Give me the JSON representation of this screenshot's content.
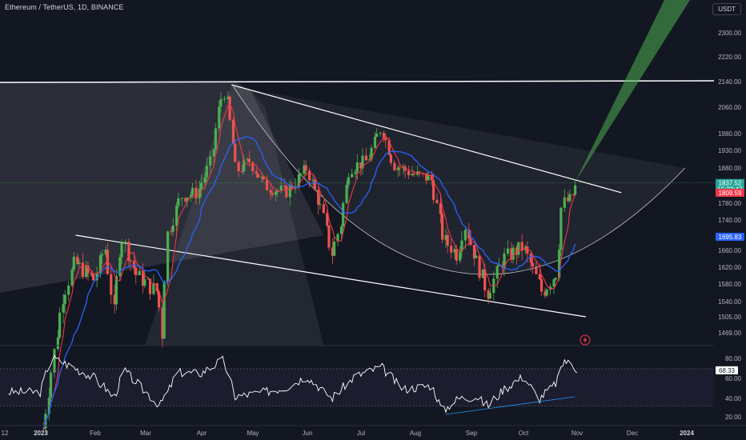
{
  "header": {
    "title": "Ethereum / TetherUS, 1D, BINANCE",
    "currency": "USDT"
  },
  "chart_data": [
    {
      "type": "candlestick",
      "symbol": "ETHUSDT",
      "timeframe": "1D",
      "exchange": "BINANCE",
      "price_axis_ticks": [
        "2300.00",
        "2220.00",
        "2140.00",
        "2060.00",
        "1980.00",
        "1930.00",
        "1880.00",
        "1780.00",
        "1740.00",
        "1660.00",
        "1620.00",
        "1580.00",
        "1540.00",
        "1505.00",
        "1469.00"
      ],
      "ylim": [
        1450,
        2400
      ],
      "time_axis_ticks": [
        "12",
        "2023",
        "Feb",
        "Mar",
        "Apr",
        "May",
        "Jun",
        "Jul",
        "Aug",
        "Sep",
        "Oct",
        "Nov",
        "Dec",
        "2024"
      ],
      "bold_ticks": [
        "2023",
        "2024"
      ],
      "price_flags": [
        {
          "label": "1837.52",
          "sub": "15:22:47",
          "color": "#26a69a",
          "price": 1837.52
        },
        {
          "label": "1809.59",
          "color": "#f23645",
          "price": 1809.59
        },
        {
          "label": "1695.83",
          "color": "#2962ff",
          "price": 1695.83
        }
      ],
      "ohlc_approx": [
        {
          "d": "2022-12-20",
          "c": 1215
        },
        {
          "d": "2023-01-01",
          "c": 1200
        },
        {
          "d": "2023-01-14",
          "c": 1550
        },
        {
          "d": "2023-01-21",
          "c": 1630
        },
        {
          "d": "2023-02-01",
          "c": 1590
        },
        {
          "d": "2023-02-07",
          "c": 1670
        },
        {
          "d": "2023-02-12",
          "c": 1515
        },
        {
          "d": "2023-02-16",
          "c": 1700
        },
        {
          "d": "2023-02-25",
          "c": 1600
        },
        {
          "d": "2023-03-09",
          "c": 1560
        },
        {
          "d": "2023-03-11",
          "c": 1450
        },
        {
          "d": "2023-03-14",
          "c": 1700
        },
        {
          "d": "2023-03-22",
          "c": 1800
        },
        {
          "d": "2023-03-31",
          "c": 1810
        },
        {
          "d": "2023-04-08",
          "c": 1900
        },
        {
          "d": "2023-04-13",
          "c": 2080
        },
        {
          "d": "2023-04-16",
          "c": 2110
        },
        {
          "d": "2023-04-19",
          "c": 2000
        },
        {
          "d": "2023-04-22",
          "c": 1870
        },
        {
          "d": "2023-04-30",
          "c": 1900
        },
        {
          "d": "2023-05-08",
          "c": 1830
        },
        {
          "d": "2023-05-20",
          "c": 1810
        },
        {
          "d": "2023-06-01",
          "c": 1880
        },
        {
          "d": "2023-06-10",
          "c": 1750
        },
        {
          "d": "2023-06-15",
          "c": 1650
        },
        {
          "d": "2023-06-20",
          "c": 1730
        },
        {
          "d": "2023-06-25",
          "c": 1880
        },
        {
          "d": "2023-07-05",
          "c": 1900
        },
        {
          "d": "2023-07-13",
          "c": 2000
        },
        {
          "d": "2023-07-20",
          "c": 1890
        },
        {
          "d": "2023-08-01",
          "c": 1860
        },
        {
          "d": "2023-08-10",
          "c": 1850
        },
        {
          "d": "2023-08-17",
          "c": 1690
        },
        {
          "d": "2023-08-25",
          "c": 1650
        },
        {
          "d": "2023-08-29",
          "c": 1730
        },
        {
          "d": "2023-09-05",
          "c": 1630
        },
        {
          "d": "2023-09-11",
          "c": 1560
        },
        {
          "d": "2023-09-20",
          "c": 1640
        },
        {
          "d": "2023-10-01",
          "c": 1670
        },
        {
          "d": "2023-10-06",
          "c": 1620
        },
        {
          "d": "2023-10-12",
          "c": 1560
        },
        {
          "d": "2023-10-20",
          "c": 1610
        },
        {
          "d": "2023-10-23",
          "c": 1780
        },
        {
          "d": "2023-10-28",
          "c": 1790
        },
        {
          "d": "2023-11-01",
          "c": 1840
        }
      ],
      "moving_averages": [
        {
          "color": "#f23645",
          "last": 1809.59
        },
        {
          "color": "#2962ff",
          "last": 1695.83
        }
      ]
    },
    {
      "type": "line",
      "y_ticks": [
        "80.00",
        "60.00",
        "40.00",
        "20.00"
      ],
      "ylim": [
        15,
        88
      ],
      "current_flag": "68.33",
      "current_value": 68.33,
      "levels": [
        70,
        30
      ],
      "rsi_values": [
        {
          "d": "2023-01-01",
          "v": 45
        },
        {
          "d": "2023-01-08",
          "v": 82
        },
        {
          "d": "2023-01-20",
          "v": 72
        },
        {
          "d": "2023-02-01",
          "v": 60
        },
        {
          "d": "2023-02-12",
          "v": 40
        },
        {
          "d": "2023-02-18",
          "v": 68
        },
        {
          "d": "2023-03-10",
          "v": 30
        },
        {
          "d": "2023-03-20",
          "v": 66
        },
        {
          "d": "2023-04-02",
          "v": 65
        },
        {
          "d": "2023-04-15",
          "v": 80
        },
        {
          "d": "2023-04-21",
          "v": 40
        },
        {
          "d": "2023-05-08",
          "v": 45
        },
        {
          "d": "2023-05-20",
          "v": 50
        },
        {
          "d": "2023-06-01",
          "v": 62
        },
        {
          "d": "2023-06-15",
          "v": 38
        },
        {
          "d": "2023-06-28",
          "v": 62
        },
        {
          "d": "2023-07-13",
          "v": 72
        },
        {
          "d": "2023-07-25",
          "v": 48
        },
        {
          "d": "2023-08-10",
          "v": 52
        },
        {
          "d": "2023-08-17",
          "v": 25
        },
        {
          "d": "2023-08-25",
          "v": 38
        },
        {
          "d": "2023-09-05",
          "v": 40
        },
        {
          "d": "2023-09-11",
          "v": 30
        },
        {
          "d": "2023-09-20",
          "v": 48
        },
        {
          "d": "2023-10-01",
          "v": 62
        },
        {
          "d": "2023-10-10",
          "v": 38
        },
        {
          "d": "2023-10-20",
          "v": 55
        },
        {
          "d": "2023-10-24",
          "v": 80
        },
        {
          "d": "2023-10-30",
          "v": 72
        },
        {
          "d": "2023-11-02",
          "v": 68
        }
      ]
    }
  ]
}
